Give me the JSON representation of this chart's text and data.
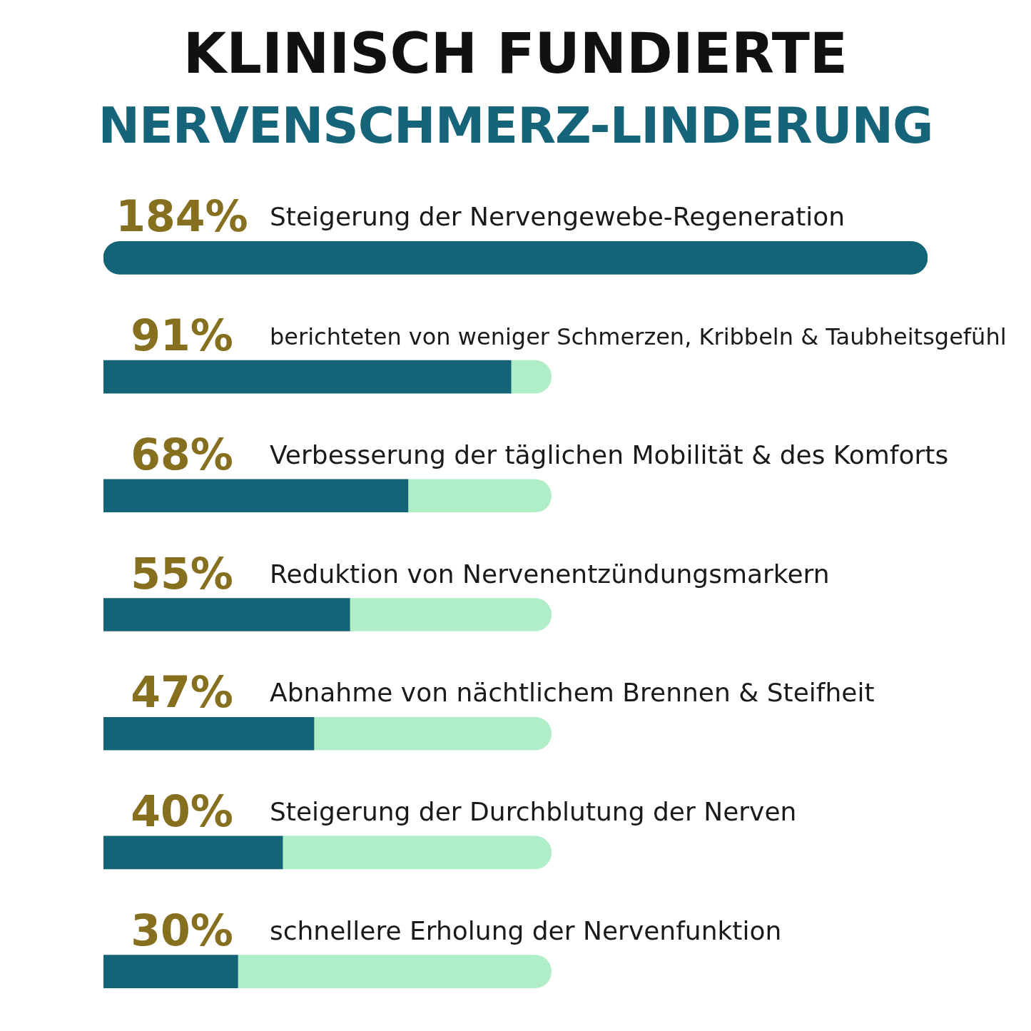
{
  "chart_data": {
    "type": "bar",
    "orientation": "horizontal",
    "title": "KLINISCH FUNDIERTE",
    "subtitle": "NERVENSCHMERZ-LINDERUNG",
    "categories": [
      "Steigerung der Nervengewebe-Regeneration",
      "berichteten von weniger Schmerzen, Kribbeln & Taubheitsgefühl",
      "Verbesserung der täglichen Mobilität & des Komforts",
      "Reduktion von Nervenentzündungsmarkern",
      "Abnahme von nächtlichem Brennen & Steifheit",
      "Steigerung der Durchblutung der Nerven",
      "schnellere Erholung der Nervenfunktion"
    ],
    "stacked": true,
    "series": [
      {
        "color": "#146477",
        "values": [
          184,
          91,
          68,
          55,
          47,
          40,
          30
        ],
        "value_labels": [
          "184%",
          "91%",
          "68%",
          "55%",
          "47%",
          "40%",
          "30%"
        ]
      },
      {
        "color": "#b0eec8",
        "values": [
          null,
          9,
          32,
          45,
          53,
          60,
          70
        ]
      }
    ],
    "xlim": [
      0,
      184
    ],
    "tick_labels": false,
    "legend": false
  }
}
